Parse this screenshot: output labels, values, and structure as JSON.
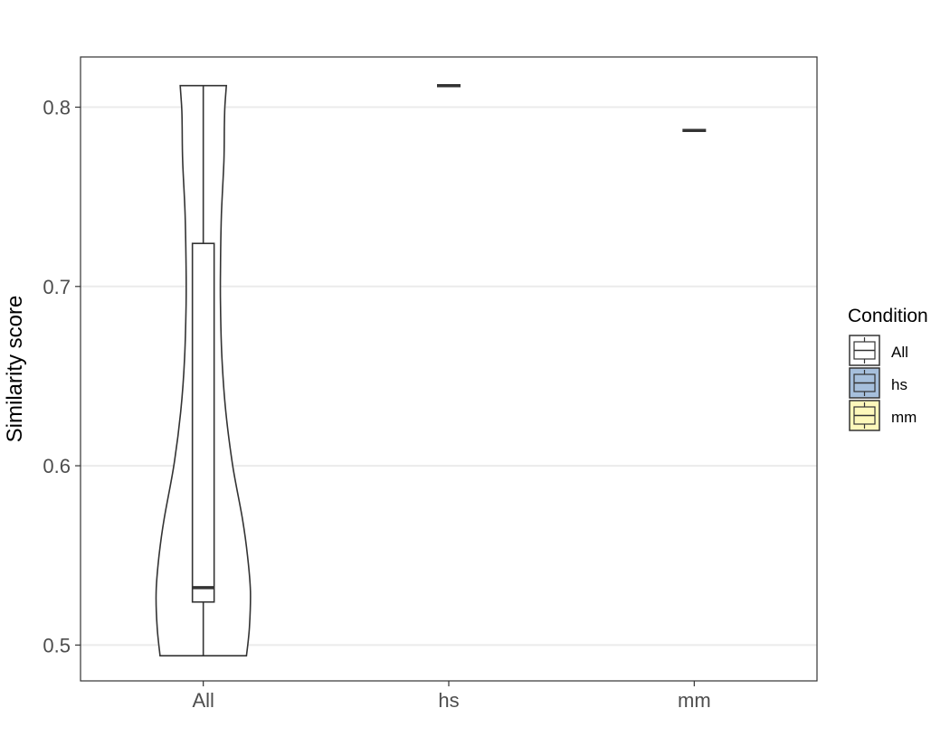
{
  "chart_data": {
    "type": "violin",
    "title": "",
    "xlabel": "",
    "ylabel": "Similarity score",
    "categories": [
      "All",
      "hs",
      "mm"
    ],
    "ylim": [
      0.48,
      0.828
    ],
    "yticks": [
      0.5,
      0.6,
      0.7,
      0.8
    ],
    "ytick_labels": [
      "0.5",
      "0.6",
      "0.7",
      "0.8"
    ],
    "grid": "horizontal major",
    "legend": {
      "title": "Condition",
      "position": "right",
      "entries": [
        {
          "label": "All",
          "color": "#ffffff"
        },
        {
          "label": "hs",
          "color": "#a6bfdc"
        },
        {
          "label": "mm",
          "color": "#fdf8bb"
        }
      ]
    },
    "groups": [
      {
        "category": "All",
        "box": {
          "min": 0.494,
          "q1": 0.524,
          "median": 0.532,
          "q3": 0.724,
          "max": 0.812
        },
        "violin_density": [
          [
            0.494,
            0.44
          ],
          [
            0.51,
            0.47
          ],
          [
            0.53,
            0.48
          ],
          [
            0.55,
            0.45
          ],
          [
            0.57,
            0.4
          ],
          [
            0.6,
            0.3
          ],
          [
            0.63,
            0.23
          ],
          [
            0.66,
            0.19
          ],
          [
            0.69,
            0.175
          ],
          [
            0.71,
            0.175
          ],
          [
            0.74,
            0.185
          ],
          [
            0.77,
            0.21
          ],
          [
            0.79,
            0.215
          ],
          [
            0.8,
            0.22
          ],
          [
            0.812,
            0.235
          ]
        ]
      },
      {
        "category": "hs",
        "value": 0.812
      },
      {
        "category": "mm",
        "value": 0.787
      }
    ],
    "colors": {
      "outline": "#333333",
      "grid": "#ebebeb",
      "panel_border": "#333333"
    }
  }
}
